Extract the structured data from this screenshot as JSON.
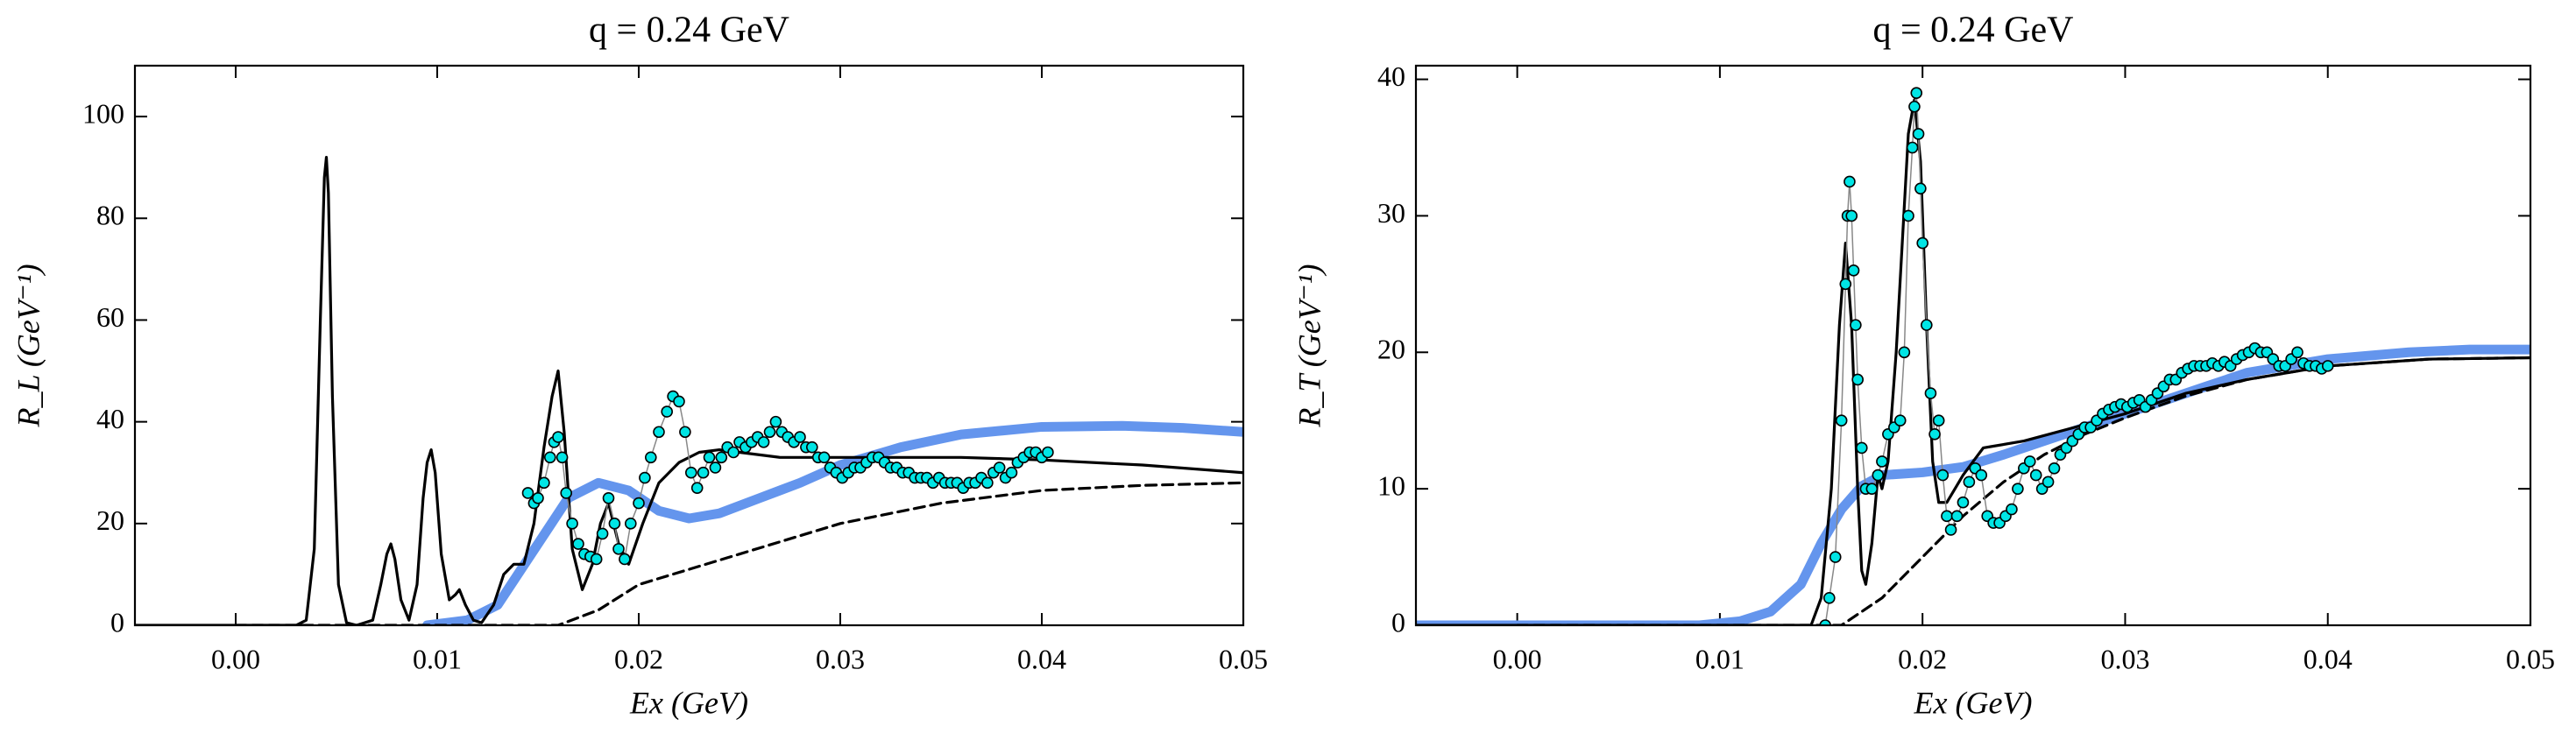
{
  "chart_data": [
    {
      "type": "line",
      "title": "q = 0.24 GeV",
      "xlabel": "Ex (GeV)",
      "ylabel": "R_L (GeV⁻¹)",
      "xlim": [
        -0.005,
        0.05
      ],
      "ylim": [
        0,
        110
      ],
      "xticks": [
        {
          "value": 0,
          "label": "0.00"
        },
        0.01,
        0.02,
        0.03,
        0.04,
        0.05
      ],
      "yticks": [
        0,
        20,
        40,
        60,
        80,
        100
      ],
      "series": [
        {
          "style": "thick",
          "color": "#6495ed",
          "x": [
            0.0095,
            0.0115,
            0.013,
            0.015,
            0.0165,
            0.018,
            0.0195,
            0.021,
            0.0225,
            0.024,
            0.026,
            0.028,
            0.03,
            0.033,
            0.036,
            0.04,
            0.044,
            0.047,
            0.05
          ],
          "values": [
            0,
            1,
            4,
            16,
            25,
            28,
            26.5,
            22.5,
            21,
            22,
            25,
            28,
            31.5,
            35,
            37.5,
            39,
            39.2,
            38.8,
            38
          ]
        },
        {
          "style": "dashed",
          "color": "#000000",
          "x": [
            0.0,
            0.016,
            0.018,
            0.02,
            0.025,
            0.03,
            0.035,
            0.04,
            0.045,
            0.05
          ],
          "values": [
            0,
            0,
            3,
            8,
            14,
            20,
            24,
            26.5,
            27.5,
            28
          ]
        },
        {
          "style": "solid",
          "color": "#000000",
          "x": [
            -0.005,
            0.003,
            0.0035,
            0.0039,
            0.0042,
            0.0044,
            0.0045,
            0.0046,
            0.0048,
            0.0051,
            0.0055,
            0.006,
            0.0068,
            0.0072,
            0.0075,
            0.0077,
            0.0079,
            0.0082,
            0.0086,
            0.009,
            0.0093,
            0.0095,
            0.0097,
            0.0099,
            0.0102,
            0.0106,
            0.0109,
            0.0111,
            0.0114,
            0.0118,
            0.0122,
            0.0128,
            0.0133,
            0.0138,
            0.0143,
            0.0148,
            0.0153,
            0.0157,
            0.016,
            0.0163,
            0.0167,
            0.0172,
            0.0177,
            0.0181,
            0.0185,
            0.019,
            0.0195,
            0.0202,
            0.021,
            0.022,
            0.023,
            0.024,
            0.025,
            0.027,
            0.03,
            0.033,
            0.036,
            0.04,
            0.045,
            0.05
          ],
          "values": [
            0,
            0,
            1,
            15,
            60,
            88,
            92,
            85,
            45,
            8,
            0.5,
            0,
            1,
            8,
            14,
            16,
            13,
            5,
            1,
            8,
            25,
            32,
            34.5,
            30,
            14,
            5,
            6,
            7,
            4,
            1,
            0.5,
            4,
            10,
            12,
            12,
            20,
            35,
            45,
            50,
            38,
            15,
            7,
            12,
            20,
            24,
            16,
            12,
            20,
            28,
            32,
            34,
            34.5,
            34,
            33,
            33,
            33,
            33,
            32.5,
            31.5,
            30
          ]
        },
        {
          "style": "markers",
          "color": "#00e5e5",
          "x": [
            0.0145,
            0.0148,
            0.015,
            0.0153,
            0.0156,
            0.0158,
            0.016,
            0.0162,
            0.0164,
            0.0167,
            0.017,
            0.0173,
            0.0176,
            0.0179,
            0.0182,
            0.0185,
            0.0188,
            0.019,
            0.0193,
            0.0196,
            0.02,
            0.0203,
            0.0206,
            0.021,
            0.0214,
            0.0217,
            0.022,
            0.0223,
            0.0226,
            0.0229,
            0.0232,
            0.0235,
            0.0238,
            0.0241,
            0.0244,
            0.0247,
            0.025,
            0.0253,
            0.0256,
            0.0259,
            0.0262,
            0.0265,
            0.0268,
            0.0271,
            0.0274,
            0.0277,
            0.028,
            0.0283,
            0.0286,
            0.0289,
            0.0292,
            0.0295,
            0.0298,
            0.0301,
            0.0304,
            0.0307,
            0.031,
            0.0313,
            0.0316,
            0.0319,
            0.0322,
            0.0325,
            0.0328,
            0.0331,
            0.0334,
            0.0337,
            0.034,
            0.0343,
            0.0346,
            0.0349,
            0.0352,
            0.0355,
            0.0358,
            0.0361,
            0.0364,
            0.0367,
            0.037,
            0.0373,
            0.0376,
            0.0379,
            0.0382,
            0.0385,
            0.0388,
            0.0391,
            0.0394,
            0.0397,
            0.04,
            0.0403
          ],
          "values": [
            26,
            24,
            25,
            28,
            33,
            36,
            37,
            33,
            26,
            20,
            16,
            14,
            13.5,
            13,
            18,
            25,
            20,
            15,
            13,
            20,
            24,
            29,
            33,
            38,
            42,
            45,
            44,
            38,
            30,
            27,
            30,
            33,
            31,
            33,
            35,
            34,
            36,
            35,
            36,
            37,
            36,
            38,
            40,
            38,
            37,
            36,
            37,
            35,
            35,
            33,
            33,
            31,
            30,
            29,
            30,
            31,
            31,
            32,
            33,
            33,
            32,
            31,
            31,
            30,
            30,
            29,
            29,
            29,
            28,
            29,
            28,
            28,
            28,
            27,
            28,
            28,
            29,
            28,
            30,
            31,
            29,
            30,
            32,
            33,
            34,
            34,
            33,
            34
          ]
        }
      ]
    },
    {
      "type": "line",
      "title": "q = 0.24 GeV",
      "xlabel": "Ex (GeV)",
      "ylabel": "R_T (GeV⁻¹)",
      "xlim": [
        -0.005,
        0.05
      ],
      "ylim": [
        0,
        41
      ],
      "xticks": [
        {
          "value": 0,
          "label": "0.00"
        },
        0.01,
        0.02,
        0.03,
        0.04,
        0.05
      ],
      "yticks": [
        0,
        10,
        20,
        30,
        40
      ],
      "series": [
        {
          "style": "thick",
          "color": "#6495ed",
          "x": [
            -0.005,
            0.009,
            0.011,
            0.0125,
            0.014,
            0.015,
            0.016,
            0.017,
            0.018,
            0.02,
            0.022,
            0.024,
            0.026,
            0.028,
            0.03,
            0.032,
            0.034,
            0.036,
            0.04,
            0.044,
            0.047,
            0.05
          ],
          "values": [
            0,
            0,
            0.3,
            1,
            3,
            6,
            8.5,
            10.2,
            11,
            11.2,
            11.6,
            12.5,
            13.5,
            14.5,
            15.5,
            16.5,
            17.5,
            18.5,
            19.5,
            20,
            20.2,
            20.2
          ]
        },
        {
          "style": "dashed",
          "color": "#000000",
          "x": [
            0.0,
            0.016,
            0.018,
            0.02,
            0.022,
            0.024,
            0.026,
            0.028,
            0.03,
            0.033,
            0.036,
            0.04,
            0.045,
            0.05
          ],
          "values": [
            0,
            0,
            2,
            5,
            8,
            10.5,
            12.5,
            14,
            15.2,
            16.8,
            18,
            19,
            19.5,
            19.6
          ]
        },
        {
          "style": "solid",
          "color": "#000000",
          "x": [
            -0.005,
            0.0145,
            0.015,
            0.0155,
            0.0159,
            0.0162,
            0.0165,
            0.0168,
            0.017,
            0.0172,
            0.0175,
            0.0178,
            0.018,
            0.0183,
            0.0187,
            0.019,
            0.0193,
            0.0196,
            0.0199,
            0.0202,
            0.0205,
            0.0208,
            0.0212,
            0.0216,
            0.022,
            0.0225,
            0.023,
            0.025,
            0.0275,
            0.03,
            0.033,
            0.036,
            0.04,
            0.045,
            0.05
          ],
          "values": [
            0,
            0,
            2,
            10,
            22,
            28,
            22,
            10,
            4,
            3,
            6,
            11,
            10,
            12,
            20,
            28,
            36,
            38.5,
            34,
            22,
            12,
            9,
            9,
            10,
            11,
            12,
            13,
            13.5,
            14.5,
            15.5,
            17,
            18,
            19,
            19.5,
            19.6
          ]
        },
        {
          "style": "markers",
          "color": "#00e5e5",
          "x": [
            0.0152,
            0.0154,
            0.0157,
            0.016,
            0.0162,
            0.0163,
            0.0164,
            0.0165,
            0.0166,
            0.0167,
            0.0168,
            0.017,
            0.0172,
            0.0175,
            0.0178,
            0.018,
            0.0183,
            0.0186,
            0.0189,
            0.0191,
            0.0193,
            0.0195,
            0.0196,
            0.0197,
            0.0198,
            0.0199,
            0.02,
            0.0202,
            0.0204,
            0.0206,
            0.0208,
            0.021,
            0.0212,
            0.0214,
            0.0217,
            0.022,
            0.0223,
            0.0226,
            0.0229,
            0.0232,
            0.0235,
            0.0238,
            0.0241,
            0.0244,
            0.0247,
            0.025,
            0.0253,
            0.0256,
            0.0259,
            0.0262,
            0.0265,
            0.0268,
            0.0271,
            0.0274,
            0.0277,
            0.028,
            0.0283,
            0.0286,
            0.0289,
            0.0292,
            0.0295,
            0.0298,
            0.0301,
            0.0304,
            0.0307,
            0.031,
            0.0313,
            0.0316,
            0.0319,
            0.0322,
            0.0325,
            0.0328,
            0.0331,
            0.0334,
            0.0337,
            0.034,
            0.0343,
            0.0346,
            0.0349,
            0.0352,
            0.0355,
            0.0358,
            0.0361,
            0.0364,
            0.0367,
            0.037,
            0.0373,
            0.0376,
            0.0379,
            0.0382,
            0.0385,
            0.0388,
            0.0391,
            0.0394,
            0.0397,
            0.04
          ],
          "values": [
            0,
            2,
            5,
            15,
            25,
            30,
            32.5,
            30,
            26,
            22,
            18,
            13,
            10,
            10,
            11,
            12,
            14,
            14.5,
            15,
            20,
            30,
            35,
            38,
            39,
            36,
            32,
            28,
            22,
            17,
            14,
            15,
            11,
            8,
            7,
            8,
            9,
            10.5,
            11.5,
            11,
            8,
            7.5,
            7.5,
            8,
            8.5,
            10,
            11.5,
            12,
            11,
            10,
            10.5,
            11.5,
            12.5,
            13,
            13.5,
            14,
            14.5,
            14.5,
            15,
            15.5,
            15.8,
            16,
            16.2,
            16,
            16.3,
            16.5,
            16,
            16.5,
            17,
            17.5,
            18,
            18,
            18.5,
            18.8,
            19,
            19,
            19,
            19.2,
            19,
            19.3,
            19,
            19.5,
            19.8,
            20,
            20.3,
            20,
            20,
            19.5,
            19,
            19,
            19.5,
            20,
            19.2,
            19,
            19,
            18.8,
            19
          ]
        }
      ]
    }
  ]
}
